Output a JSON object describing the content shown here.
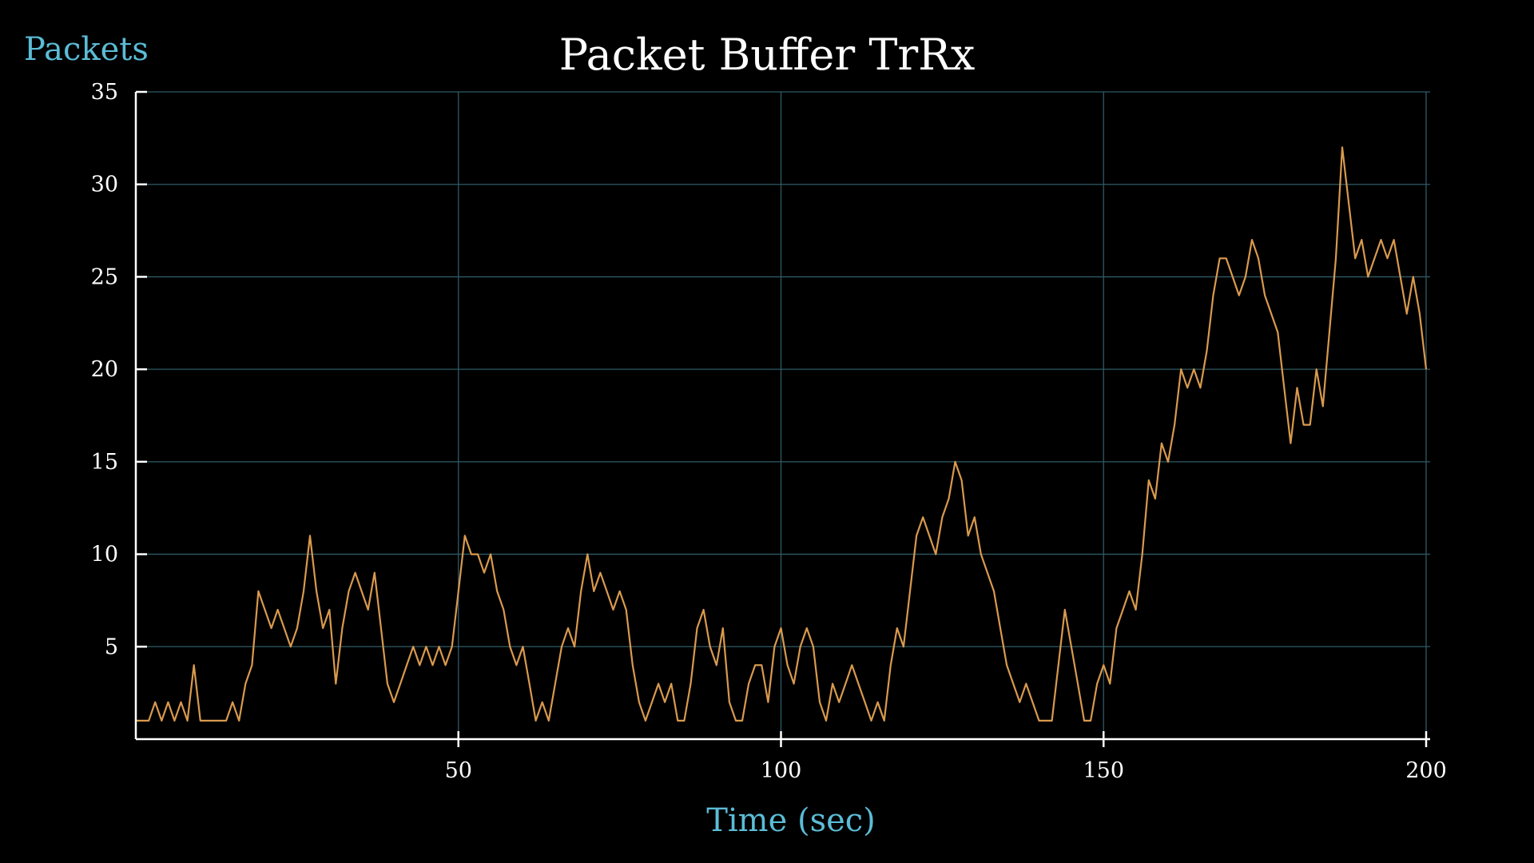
{
  "theme": {
    "background": "#000000",
    "text_color": "#ffffff",
    "label_color": "#5bbcd6",
    "grid_color": "#2f5a66",
    "axis_color": "#ffffff",
    "series_color": "#d99a4e"
  },
  "chart_data": {
    "type": "line",
    "title": "Packet Buffer TrRx",
    "xlabel": "Time (sec)",
    "ylabel": "Packets",
    "xlim": [
      0,
      200
    ],
    "ylim": [
      0,
      35
    ],
    "xticks": [
      50,
      100,
      150,
      200
    ],
    "yticks": [
      5,
      10,
      15,
      20,
      25,
      30,
      35
    ],
    "grid": true,
    "legend": "none",
    "series": [
      {
        "x": [
          0,
          1,
          2,
          3,
          4,
          5,
          6,
          7,
          8,
          9,
          10,
          11,
          12,
          13,
          14,
          15,
          16,
          17,
          18,
          19,
          20,
          21,
          22,
          23,
          24,
          25,
          26,
          27,
          28,
          29,
          30,
          31,
          32,
          33,
          34,
          35,
          36,
          37,
          38,
          39,
          40,
          41,
          42,
          43,
          44,
          45,
          46,
          47,
          48,
          49,
          50,
          51,
          52,
          53,
          54,
          55,
          56,
          57,
          58,
          59,
          60,
          61,
          62,
          63,
          64,
          65,
          66,
          67,
          68,
          69,
          70,
          71,
          72,
          73,
          74,
          75,
          76,
          77,
          78,
          79,
          80,
          81,
          82,
          83,
          84,
          85,
          86,
          87,
          88,
          89,
          90,
          91,
          92,
          93,
          94,
          95,
          96,
          97,
          98,
          99,
          100,
          101,
          102,
          103,
          104,
          105,
          106,
          107,
          108,
          109,
          110,
          111,
          112,
          113,
          114,
          115,
          116,
          117,
          118,
          119,
          120,
          121,
          122,
          123,
          124,
          125,
          126,
          127,
          128,
          129,
          130,
          131,
          132,
          133,
          134,
          135,
          136,
          137,
          138,
          139,
          140,
          141,
          142,
          143,
          144,
          145,
          146,
          147,
          148,
          149,
          150,
          151,
          152,
          153,
          154,
          155,
          156,
          157,
          158,
          159,
          160,
          161,
          162,
          163,
          164,
          165,
          166,
          167,
          168,
          169,
          170,
          171,
          172,
          173,
          174,
          175,
          176,
          177,
          178,
          179,
          180,
          181,
          182,
          183,
          184,
          185,
          186,
          187,
          188,
          189,
          190,
          191,
          192,
          193,
          194,
          195,
          196,
          197,
          198,
          199,
          200
        ],
        "values": [
          1,
          1,
          1,
          2,
          1,
          2,
          1,
          2,
          1,
          4,
          1,
          1,
          1,
          1,
          1,
          2,
          1,
          3,
          4,
          8,
          7,
          6,
          7,
          6,
          5,
          6,
          8,
          11,
          8,
          6,
          7,
          3,
          6,
          8,
          9,
          8,
          7,
          9,
          6,
          3,
          2,
          3,
          4,
          5,
          4,
          5,
          4,
          5,
          4,
          5,
          8,
          11,
          10,
          10,
          9,
          10,
          8,
          7,
          5,
          4,
          5,
          3,
          1,
          2,
          1,
          3,
          5,
          6,
          5,
          8,
          10,
          8,
          9,
          8,
          7,
          8,
          7,
          4,
          2,
          1,
          2,
          3,
          2,
          3,
          1,
          1,
          3,
          6,
          7,
          5,
          4,
          6,
          2,
          1,
          1,
          3,
          4,
          4,
          2,
          5,
          6,
          4,
          3,
          5,
          6,
          5,
          2,
          1,
          3,
          2,
          3,
          4,
          3,
          2,
          1,
          2,
          1,
          4,
          6,
          5,
          8,
          11,
          12,
          11,
          10,
          12,
          13,
          15,
          14,
          11,
          12,
          10,
          9,
          8,
          6,
          4,
          3,
          2,
          3,
          2,
          1,
          1,
          1,
          4,
          7,
          5,
          3,
          1,
          1,
          3,
          4,
          3,
          6,
          7,
          8,
          7,
          10,
          14,
          13,
          16,
          15,
          17,
          20,
          19,
          20,
          19,
          21,
          24,
          26,
          26,
          25,
          24,
          25,
          27,
          26,
          24,
          23,
          22,
          19,
          16,
          19,
          17,
          17,
          20,
          18,
          22,
          26,
          32,
          29,
          26,
          27,
          25,
          26,
          27,
          26,
          27,
          25,
          23,
          25,
          23,
          20
        ]
      }
    ]
  }
}
